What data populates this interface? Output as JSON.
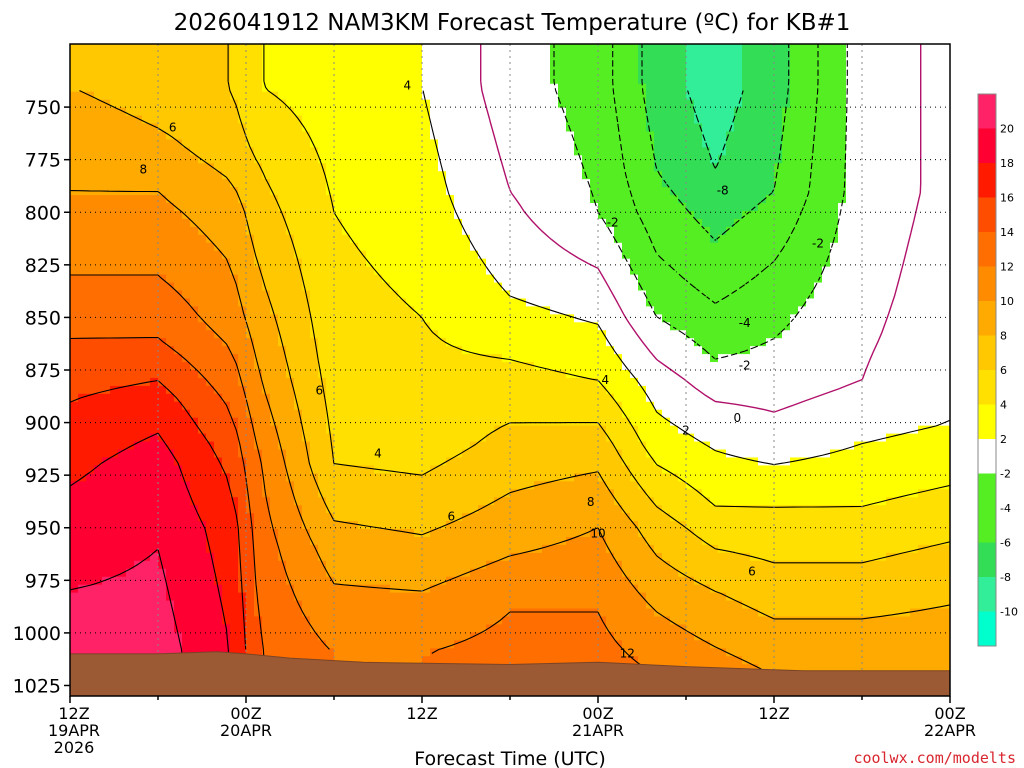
{
  "chart_data": {
    "type": "heatmap",
    "title": "2026041912 NAM3KM Forecast Temperature (ºC) for KB#1",
    "xlabel": "Forecast Time (UTC)",
    "ylabel": "",
    "credit": "coolwx.com/modelts",
    "x_hours": [
      0,
      6,
      12,
      18,
      24,
      30,
      36,
      42,
      48,
      54,
      60
    ],
    "ylim": [
      1030,
      720
    ],
    "y_ticks": [
      750,
      775,
      800,
      825,
      850,
      875,
      900,
      925,
      950,
      975,
      1000,
      1025
    ],
    "x_ticks": [
      {
        "hour": 0,
        "line1": "12Z",
        "line2": "19APR",
        "line3": "2026"
      },
      {
        "hour": 12,
        "line1": "00Z",
        "line2": "20APR",
        "line3": ""
      },
      {
        "hour": 24,
        "line1": "12Z",
        "line2": "",
        "line3": ""
      },
      {
        "hour": 36,
        "line1": "00Z",
        "line2": "21APR",
        "line3": ""
      },
      {
        "hour": 48,
        "line1": "12Z",
        "line2": "",
        "line3": ""
      },
      {
        "hour": 60,
        "line1": "00Z",
        "line2": "22APR",
        "line3": ""
      }
    ],
    "xlim": [
      0,
      60
    ],
    "levels": [
      -12,
      -10,
      -8,
      -6,
      -4,
      -2,
      2,
      4,
      6,
      8,
      10,
      12,
      14,
      16,
      18,
      20,
      22
    ],
    "colorbar_labels": [
      20,
      18,
      16,
      14,
      12,
      10,
      8,
      6,
      4,
      2,
      -2,
      -4,
      -6,
      -8,
      -10
    ],
    "colors": {
      "-12": "#00ffcc",
      "-10": "#00ffcc",
      "-8": "#33ee99",
      "-6": "#33dd55",
      "-4": "#55ee22",
      "-2": "#55ee22",
      "2": "#ffffff",
      "4": "#ffff00",
      "6": "#ffe000",
      "8": "#ffc800",
      "10": "#ffaa00",
      "12": "#ff8c00",
      "14": "#ff6e00",
      "16": "#ff4d00",
      "18": "#ff1a00",
      "20": "#ff0033",
      "22": "#ff2266"
    },
    "temperature_grid": [
      {
        "hour": 0,
        "profile": [
          [
            740,
            8
          ],
          [
            760,
            9
          ],
          [
            790,
            10
          ],
          [
            830,
            12
          ],
          [
            860,
            14
          ],
          [
            890,
            16
          ],
          [
            930,
            18
          ],
          [
            980,
            20
          ],
          [
            1010,
            22
          ]
        ]
      },
      {
        "hour": 6,
        "profile": [
          [
            740,
            7
          ],
          [
            760,
            8
          ],
          [
            790,
            10
          ],
          [
            830,
            12
          ],
          [
            860,
            14
          ],
          [
            890,
            17
          ],
          [
            920,
            19
          ],
          [
            960,
            20
          ],
          [
            1010,
            21
          ]
        ]
      },
      {
        "hour": 11,
        "profile": [
          [
            740,
            6
          ],
          [
            770,
            7
          ],
          [
            800,
            9
          ],
          [
            850,
            11
          ],
          [
            880,
            13
          ],
          [
            910,
            15
          ],
          [
            950,
            17
          ],
          [
            1010,
            18
          ]
        ]
      },
      {
        "hour": 13,
        "profile": [
          [
            740,
            4
          ],
          [
            780,
            6
          ],
          [
            830,
            8
          ],
          [
            880,
            10
          ],
          [
            920,
            12
          ],
          [
            960,
            13
          ],
          [
            1010,
            14
          ]
        ]
      },
      {
        "hour": 18,
        "profile": [
          [
            740,
            3
          ],
          [
            800,
            4
          ],
          [
            870,
            5
          ],
          [
            920,
            6
          ],
          [
            960,
            9
          ],
          [
            1010,
            12
          ]
        ]
      },
      {
        "hour": 24,
        "profile": [
          [
            740,
            2
          ],
          [
            800,
            3
          ],
          [
            850,
            4
          ],
          [
            910,
            5
          ],
          [
            940,
            7
          ],
          [
            980,
            10
          ],
          [
            1010,
            12
          ]
        ]
      },
      {
        "hour": 30,
        "profile": [
          [
            740,
            -1
          ],
          [
            790,
            0
          ],
          [
            840,
            2
          ],
          [
            870,
            4
          ],
          [
            900,
            6
          ],
          [
            950,
            9
          ],
          [
            990,
            12
          ],
          [
            1020,
            13
          ]
        ]
      },
      {
        "hour": 36,
        "profile": [
          [
            740,
            -3
          ],
          [
            800,
            -2
          ],
          [
            840,
            1
          ],
          [
            880,
            4
          ],
          [
            910,
            7
          ],
          [
            950,
            10
          ],
          [
            990,
            12
          ],
          [
            1020,
            13
          ]
        ]
      },
      {
        "hour": 40,
        "profile": [
          [
            740,
            -7
          ],
          [
            780,
            -6
          ],
          [
            820,
            -4
          ],
          [
            850,
            -2
          ],
          [
            880,
            1
          ],
          [
            910,
            3
          ],
          [
            950,
            7
          ],
          [
            990,
            10
          ],
          [
            1020,
            12
          ]
        ]
      },
      {
        "hour": 44,
        "profile": [
          [
            740,
            -9
          ],
          [
            780,
            -8
          ],
          [
            830,
            -5
          ],
          [
            870,
            -2
          ],
          [
            900,
            1
          ],
          [
            940,
            4
          ],
          [
            980,
            8
          ],
          [
            1020,
            11
          ]
        ]
      },
      {
        "hour": 48,
        "profile": [
          [
            740,
            -7
          ],
          [
            790,
            -6
          ],
          [
            840,
            -3
          ],
          [
            880,
            -1
          ],
          [
            910,
            1
          ],
          [
            940,
            4
          ],
          [
            980,
            7
          ],
          [
            1020,
            10
          ]
        ]
      },
      {
        "hour": 54,
        "profile": [
          [
            740,
            -1
          ],
          [
            790,
            -1
          ],
          [
            840,
            -0.5
          ],
          [
            880,
            0
          ],
          [
            910,
            2
          ],
          [
            940,
            4
          ],
          [
            980,
            7
          ],
          [
            1020,
            10
          ]
        ]
      },
      {
        "hour": 60,
        "profile": [
          [
            740,
            0.5
          ],
          [
            790,
            0.5
          ],
          [
            860,
            1
          ],
          [
            900,
            2
          ],
          [
            930,
            4
          ],
          [
            970,
            7
          ],
          [
            1020,
            10
          ]
        ]
      }
    ],
    "contour_labels": [
      {
        "hour": 7.0,
        "p": 760,
        "text": "6"
      },
      {
        "hour": 5.0,
        "p": 780,
        "text": "8"
      },
      {
        "hour": 23.0,
        "p": 740,
        "text": "4"
      },
      {
        "hour": 17.0,
        "p": 885,
        "text": "6"
      },
      {
        "hour": 21.0,
        "p": 915,
        "text": "4"
      },
      {
        "hour": 26.0,
        "p": 945,
        "text": "6"
      },
      {
        "hour": 36.5,
        "p": 880,
        "text": "4"
      },
      {
        "hour": 37.0,
        "p": 805,
        "text": "-2"
      },
      {
        "hour": 44.5,
        "p": 790,
        "text": "-8"
      },
      {
        "hour": 51.0,
        "p": 815,
        "text": "-2"
      },
      {
        "hour": 46.0,
        "p": 853,
        "text": "-4"
      },
      {
        "hour": 46.0,
        "p": 873,
        "text": "-2"
      },
      {
        "hour": 45.5,
        "p": 898,
        "text": "0"
      },
      {
        "hour": 42.0,
        "p": 904,
        "text": "2"
      },
      {
        "hour": 35.5,
        "p": 938,
        "text": "8"
      },
      {
        "hour": 36.0,
        "p": 953,
        "text": "10"
      },
      {
        "hour": 46.5,
        "p": 971,
        "text": "6"
      },
      {
        "hour": 38.0,
        "p": 1010,
        "text": "12"
      }
    ],
    "surface_pressure": [
      [
        0,
        1010
      ],
      [
        6,
        1010
      ],
      [
        10,
        1009
      ],
      [
        12,
        1010
      ],
      [
        15,
        1012
      ],
      [
        20,
        1014
      ],
      [
        30,
        1015
      ],
      [
        36,
        1014
      ],
      [
        42,
        1016
      ],
      [
        50,
        1018
      ],
      [
        60,
        1018
      ]
    ]
  }
}
